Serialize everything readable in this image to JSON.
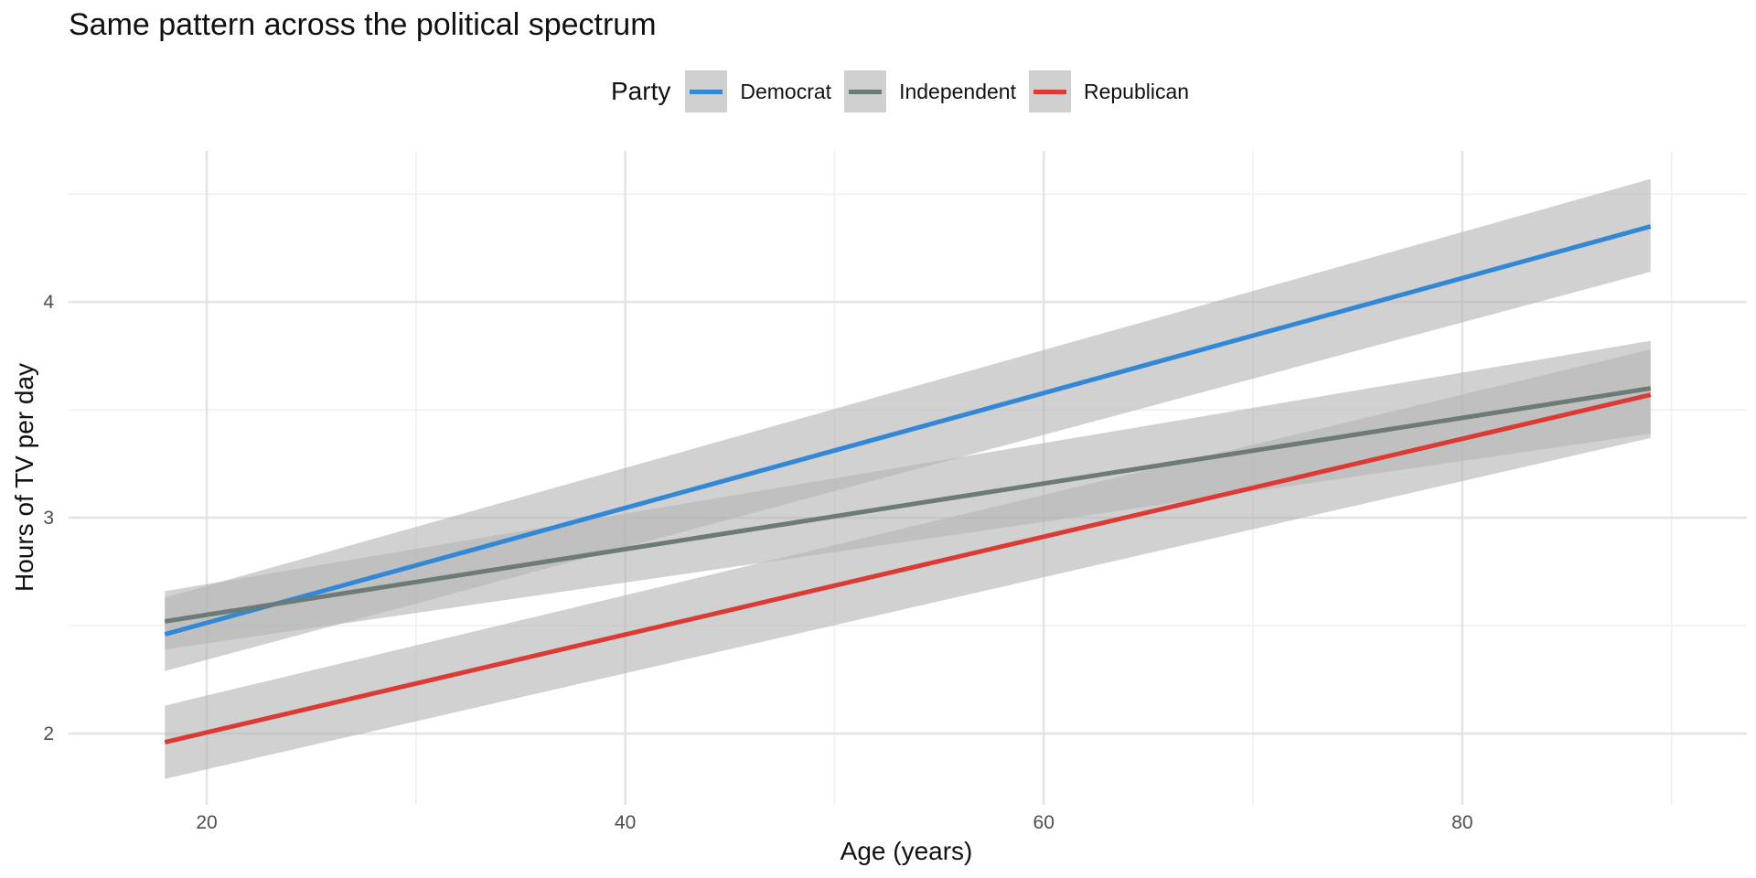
{
  "chart_data": {
    "type": "line",
    "title": "Same pattern across the political spectrum",
    "xlabel": "Age (years)",
    "ylabel": "Hours of TV per day",
    "xlim": [
      13.4,
      93.6
    ],
    "ylim": [
      1.67,
      4.7
    ],
    "x_ticks": [
      20,
      40,
      60,
      80
    ],
    "y_ticks": [
      2,
      3,
      4
    ],
    "grid": true,
    "legend": {
      "title": "Party",
      "position": "top"
    },
    "series": [
      {
        "name": "Democrat",
        "color": "#3388d6",
        "x": [
          18,
          89
        ],
        "y": [
          2.46,
          4.35
        ],
        "ci_lower": [
          2.29,
          4.14
        ],
        "ci_upper": [
          2.63,
          4.57
        ]
      },
      {
        "name": "Independent",
        "color": "#6c7a78",
        "x": [
          18,
          89
        ],
        "y": [
          2.52,
          3.6
        ],
        "ci_lower": [
          2.39,
          3.39
        ],
        "ci_upper": [
          2.66,
          3.82
        ]
      },
      {
        "name": "Republican",
        "color": "#dc3a35",
        "x": [
          18,
          89
        ],
        "y": [
          1.96,
          3.57
        ],
        "ci_lower": [
          1.79,
          3.37
        ],
        "ci_upper": [
          2.13,
          3.78
        ]
      }
    ],
    "band_color": "#b4b4b4"
  }
}
